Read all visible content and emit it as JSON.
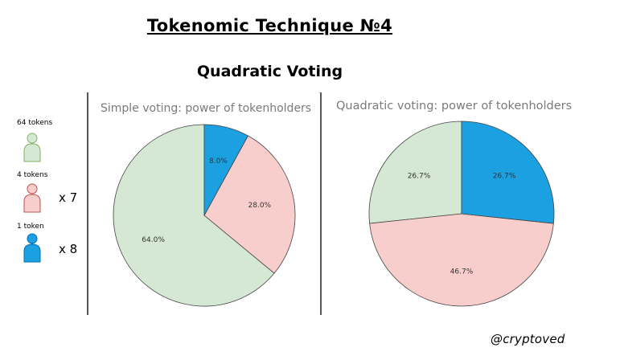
{
  "title": "Tokenomic Technique №4",
  "subtitle": "Quadratic Voting",
  "legend": [
    {
      "label": "64 tokens",
      "multiplier": "",
      "color": "#d5e8d4"
    },
    {
      "label": "4 tokens",
      "multiplier": "x 7",
      "color": "#f8cecc"
    },
    {
      "label": "1 token",
      "multiplier": "x 8",
      "color": "#1ba1e2"
    }
  ],
  "chart_data": [
    {
      "type": "pie",
      "title": "Simple voting: power of tokenholders",
      "slices": [
        {
          "value": 64.0,
          "label": "64.0%",
          "color": "#d5e8d4"
        },
        {
          "value": 28.0,
          "label": "28.0%",
          "color": "#f8cecc"
        },
        {
          "value": 8.0,
          "label": "8.0%",
          "color": "#1ba1e2"
        }
      ]
    },
    {
      "type": "pie",
      "title": "Quadratic voting: power of tokenholders",
      "slices": [
        {
          "value": 26.7,
          "label": "26.7%",
          "color": "#d5e8d4"
        },
        {
          "value": 46.7,
          "label": "46.7%",
          "color": "#f8cecc"
        },
        {
          "value": 26.7,
          "label": "26.7%",
          "color": "#1ba1e2"
        }
      ]
    }
  ],
  "watermark": "@cryptoved"
}
